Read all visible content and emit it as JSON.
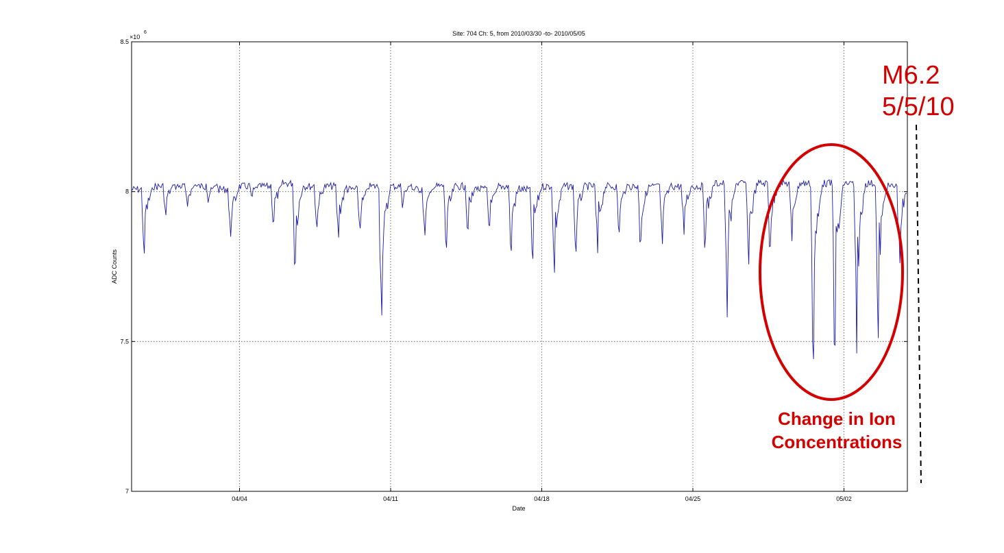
{
  "chart_data": {
    "type": "line",
    "title": "Site: 704 Ch: 5, from 2010/03/30 -to- 2010/05/05",
    "xlabel": "Date",
    "ylabel": "ADC Counts",
    "y_multiplier": "×10",
    "y_multiplier_exp": "6",
    "ylim": [
      7,
      8.5
    ],
    "xlim": [
      "2010/03/30",
      "2010/05/05"
    ],
    "grid": true,
    "y_ticks": [
      {
        "value": 7,
        "label": "7"
      },
      {
        "value": 7.5,
        "label": "7.5"
      },
      {
        "value": 8,
        "label": "8"
      },
      {
        "value": 8.5,
        "label": "8.5"
      }
    ],
    "x_ticks": [
      {
        "date": "2010/04/04",
        "label": "04/04"
      },
      {
        "date": "2010/04/11",
        "label": "04/11"
      },
      {
        "date": "2010/04/18",
        "label": "04/18"
      },
      {
        "date": "2010/04/25",
        "label": "04/25"
      },
      {
        "date": "2010/05/02",
        "label": "05/02"
      }
    ],
    "series_color": "#1a1aa8",
    "series": [
      {
        "x": [
          "2010/03/30",
          "2010/03/31",
          "2010/04/01",
          "2010/04/02",
          "2010/04/03",
          "2010/04/04",
          "2010/04/05",
          "2010/04/06",
          "2010/04/07",
          "2010/04/08",
          "2010/04/09",
          "2010/04/10",
          "2010/04/11",
          "2010/04/12",
          "2010/04/13",
          "2010/04/14",
          "2010/04/15",
          "2010/04/16",
          "2010/04/17",
          "2010/04/18",
          "2010/04/19",
          "2010/04/20",
          "2010/04/21",
          "2010/04/22",
          "2010/04/23",
          "2010/04/24",
          "2010/04/25",
          "2010/04/26",
          "2010/04/27",
          "2010/04/28",
          "2010/04/29",
          "2010/04/30",
          "2010/05/01",
          "2010/05/02",
          "2010/05/03",
          "2010/05/04",
          "2010/05/05"
        ],
        "max": [
          8.02,
          8.03,
          8.03,
          8.03,
          8.02,
          8.03,
          8.03,
          8.04,
          8.03,
          8.03,
          8.02,
          8.03,
          8.03,
          8.02,
          8.03,
          8.03,
          8.02,
          8.03,
          8.02,
          8.03,
          8.03,
          8.03,
          8.03,
          8.03,
          8.03,
          8.03,
          8.03,
          8.04,
          8.04,
          8.04,
          8.04,
          8.04,
          8.04,
          8.04,
          8.04,
          8.03,
          7.96
        ],
        "min": [
          7.79,
          7.91,
          7.93,
          7.95,
          7.81,
          7.96,
          7.87,
          7.73,
          7.86,
          7.81,
          7.85,
          7.54,
          7.94,
          7.85,
          7.78,
          7.83,
          7.84,
          7.79,
          7.76,
          7.69,
          7.78,
          7.77,
          7.85,
          7.8,
          7.82,
          7.85,
          7.8,
          7.54,
          7.71,
          7.78,
          7.82,
          7.42,
          7.45,
          7.45,
          7.5,
          7.73,
          7.9
        ]
      }
    ],
    "annotations": {
      "event_line1": "M6.2",
      "event_line2": "5/5/10",
      "highlight_line1": "Change in Ion",
      "highlight_line2": "Concentrations",
      "color": "#d40000"
    }
  }
}
